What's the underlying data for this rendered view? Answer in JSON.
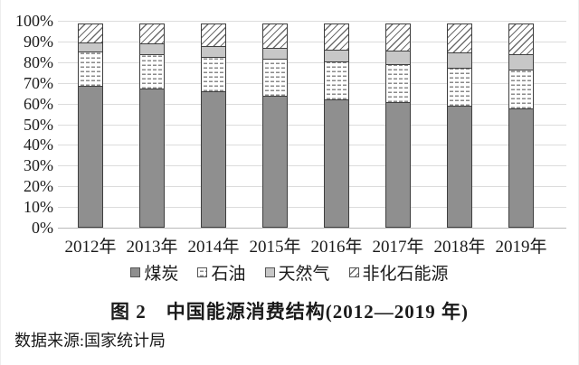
{
  "figure": {
    "caption": "图 2　中国能源消费结构(2012—2019 年)",
    "source": "数据来源:国家统计局"
  },
  "chart_data": {
    "type": "bar",
    "stacked": true,
    "title": "图 2 中国能源消费结构(2012—2019 年)",
    "categories": [
      "2012年",
      "2013年",
      "2014年",
      "2015年",
      "2016年",
      "2017年",
      "2018年",
      "2019年"
    ],
    "series": [
      {
        "key": "coal",
        "name": "煤炭",
        "pattern": "solid-dark",
        "values": [
          68.5,
          67.4,
          65.8,
          63.8,
          62.2,
          60.6,
          59.0,
          57.7
        ]
      },
      {
        "key": "oil",
        "name": "石油",
        "pattern": "dotted",
        "values": [
          17.0,
          17.1,
          17.3,
          18.4,
          18.7,
          18.9,
          18.9,
          19.0
        ]
      },
      {
        "key": "gas",
        "name": "天然气",
        "pattern": "solid-light",
        "values": [
          4.8,
          5.3,
          5.6,
          5.8,
          6.1,
          6.9,
          7.6,
          8.0
        ]
      },
      {
        "key": "non_fossil",
        "name": "非化石能源",
        "pattern": "hatch",
        "values": [
          9.7,
          10.2,
          11.3,
          12.0,
          13.0,
          13.6,
          14.5,
          15.3
        ]
      }
    ],
    "ylim": [
      0,
      100
    ],
    "yticks": [
      "0%",
      "10%",
      "20%",
      "30%",
      "40%",
      "50%",
      "60%",
      "70%",
      "80%",
      "90%",
      "100%"
    ],
    "xlabel": "",
    "ylabel": "",
    "grid": true,
    "legend_position": "bottom",
    "colors": {
      "coal_fill": "#8f8f8f",
      "gas_fill": "#c7c7c7",
      "segment_border": "#3f3f3f",
      "gridline": "#dcdcdc",
      "axis_line": "#b9b9b9",
      "pattern_ink": "#6e6e6e"
    }
  }
}
